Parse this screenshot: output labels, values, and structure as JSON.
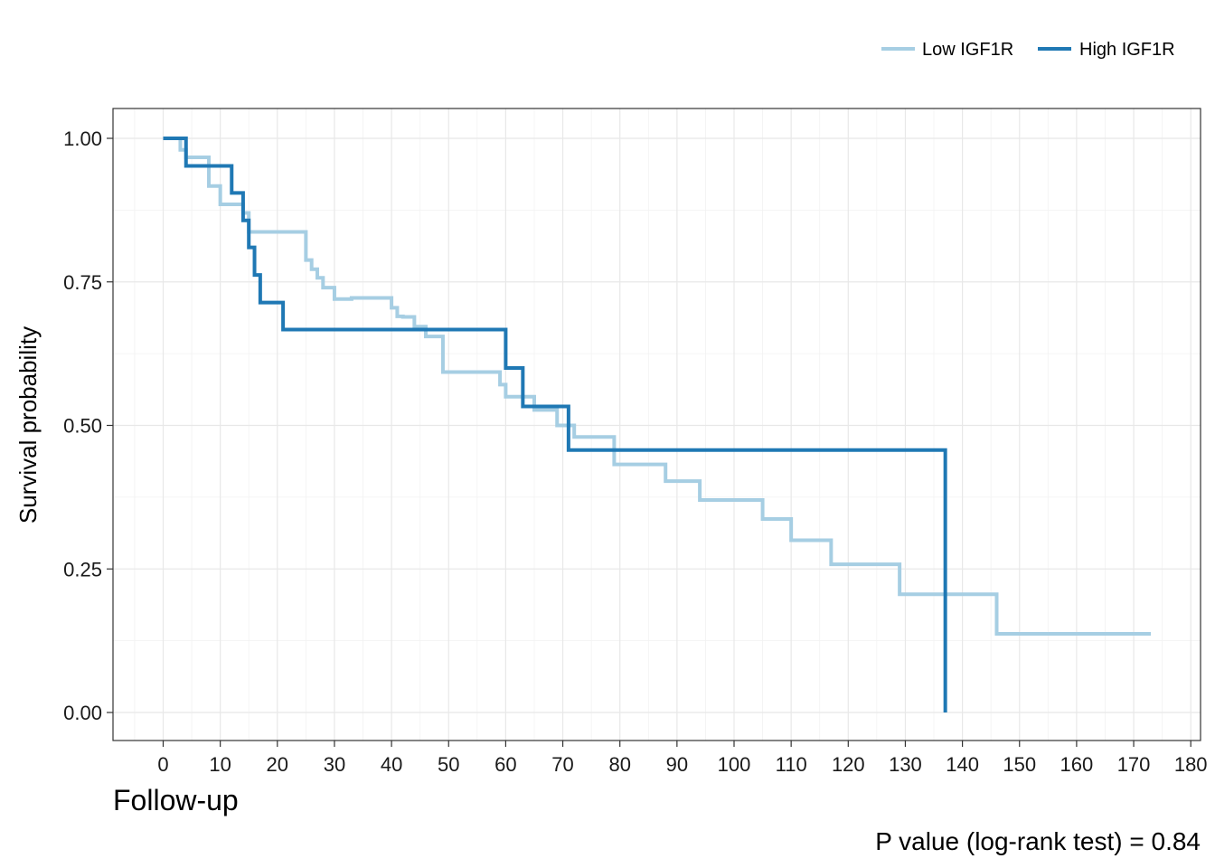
{
  "chart_data": {
    "type": "line",
    "subtype": "kaplan-meier step",
    "xlabel": "Follow-up",
    "ylabel": "Survival probability",
    "xlim": [
      0,
      180
    ],
    "ylim": [
      0,
      1
    ],
    "x_ticks": [
      "0",
      "10",
      "20",
      "30",
      "40",
      "50",
      "60",
      "70",
      "80",
      "90",
      "100",
      "110",
      "120",
      "130",
      "140",
      "150",
      "160",
      "170",
      "180"
    ],
    "y_ticks": [
      "0.00",
      "0.25",
      "0.50",
      "0.75",
      "1.00"
    ],
    "grid": true,
    "legend_position": "top-right",
    "annotation": "P value (log-rank test) = 0.84",
    "series": [
      {
        "name": "Low IGF1R",
        "color": "#a6cee3",
        "x": [
          0,
          3,
          4,
          8,
          10,
          14,
          15,
          25,
          26,
          27,
          28,
          30,
          33,
          40,
          41,
          42,
          44,
          46,
          48,
          49,
          59,
          60,
          61,
          65,
          66,
          69,
          72,
          79,
          80,
          88,
          94,
          105,
          110,
          117,
          129,
          146,
          173
        ],
        "y": [
          1.0,
          0.98,
          0.967,
          0.917,
          0.885,
          0.87,
          0.837,
          0.788,
          0.772,
          0.757,
          0.74,
          0.72,
          0.722,
          0.705,
          0.69,
          0.689,
          0.672,
          0.655,
          0.655,
          0.593,
          0.571,
          0.55,
          0.55,
          0.527,
          0.527,
          0.5,
          0.48,
          0.432,
          0.432,
          0.403,
          0.37,
          0.337,
          0.3,
          0.258,
          0.206,
          0.137,
          0.137
        ]
      },
      {
        "name": "High IGF1R",
        "color": "#1f78b4",
        "x": [
          0,
          4,
          12,
          14,
          15,
          16,
          17,
          21,
          60,
          63,
          71,
          137,
          137
        ],
        "y": [
          1.0,
          0.952,
          0.905,
          0.857,
          0.81,
          0.762,
          0.714,
          0.667,
          0.6,
          0.533,
          0.457,
          0.457,
          0.0
        ]
      }
    ]
  }
}
